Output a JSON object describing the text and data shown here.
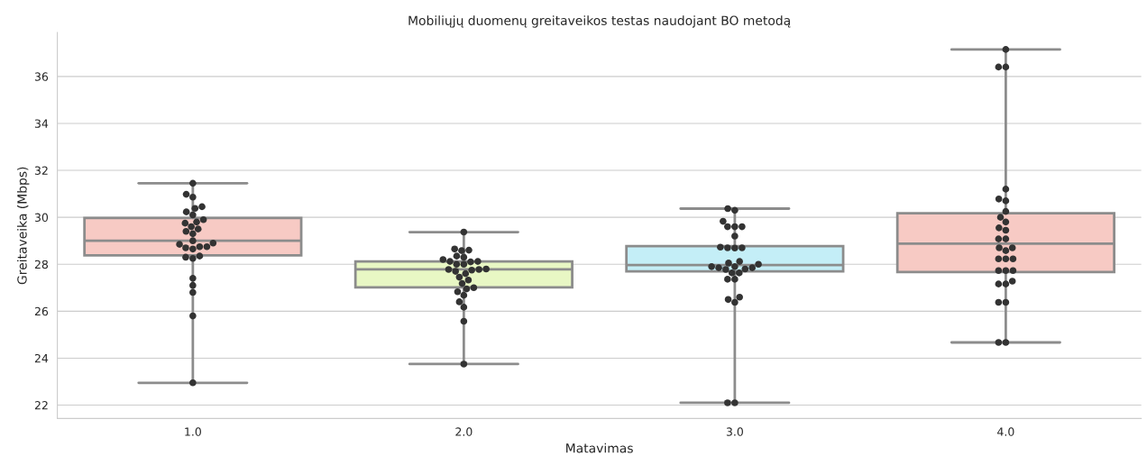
{
  "chart_data": {
    "type": "box",
    "title": "Mobiliųjų duomenų greitaveikos testas naudojant BO metodą",
    "xlabel": "Matavimas",
    "ylabel": "Greitaveika (Mbps)",
    "categories": [
      "1.0",
      "2.0",
      "3.0",
      "4.0"
    ],
    "colors": [
      "#f7cac4",
      "#e8f7c4",
      "#c4eef7",
      "#f7cac4"
    ],
    "boxes": [
      {
        "low": 22.95,
        "q1": 28.38,
        "median": 29.0,
        "q3": 29.97,
        "high": 31.45
      },
      {
        "low": 23.75,
        "q1": 27.02,
        "median": 27.78,
        "q3": 28.12,
        "high": 29.37
      },
      {
        "low": 22.1,
        "q1": 27.7,
        "median": 27.97,
        "q3": 28.77,
        "high": 30.37
      },
      {
        "low": 24.67,
        "q1": 27.67,
        "median": 28.88,
        "q3": 30.17,
        "high": 37.15
      }
    ],
    "series": [
      {
        "type": "scatter",
        "color": "#333333",
        "x": [
          "1.0",
          "1.0",
          "1.0",
          "1.0",
          "1.0",
          "1.0",
          "1.0",
          "1.0",
          "1.0",
          "1.0",
          "1.0",
          "1.0",
          "1.0",
          "1.0",
          "1.0",
          "1.0",
          "1.0",
          "1.0",
          "1.0",
          "1.0",
          "1.0",
          "1.0",
          "1.0",
          "1.0",
          "1.0",
          "1.0",
          "1.0",
          "1.0",
          "1.0",
          "2.0",
          "2.0",
          "2.0",
          "2.0",
          "2.0",
          "2.0",
          "2.0",
          "2.0",
          "2.0",
          "2.0",
          "2.0",
          "2.0",
          "2.0",
          "2.0",
          "2.0",
          "2.0",
          "2.0",
          "2.0",
          "2.0",
          "2.0",
          "2.0",
          "2.0",
          "2.0",
          "2.0",
          "2.0",
          "2.0",
          "2.0",
          "2.0",
          "2.0",
          "3.0",
          "3.0",
          "3.0",
          "3.0",
          "3.0",
          "3.0",
          "3.0",
          "3.0",
          "3.0",
          "3.0",
          "3.0",
          "3.0",
          "3.0",
          "3.0",
          "3.0",
          "3.0",
          "3.0",
          "3.0",
          "3.0",
          "3.0",
          "3.0",
          "3.0",
          "3.0",
          "3.0",
          "3.0",
          "3.0",
          "3.0",
          "3.0",
          "3.0",
          "4.0",
          "4.0",
          "4.0",
          "4.0",
          "4.0",
          "4.0",
          "4.0",
          "4.0",
          "4.0",
          "4.0",
          "4.0",
          "4.0",
          "4.0",
          "4.0",
          "4.0",
          "4.0",
          "4.0",
          "4.0",
          "4.0",
          "4.0",
          "4.0",
          "4.0",
          "4.0",
          "4.0",
          "4.0",
          "4.0",
          "4.0",
          "4.0",
          "4.0"
        ],
        "values": [
          31.45,
          30.98,
          30.86,
          30.45,
          30.38,
          30.23,
          30.1,
          29.9,
          29.8,
          29.75,
          29.6,
          29.5,
          29.4,
          29.3,
          29.0,
          28.9,
          28.85,
          28.75,
          28.7,
          28.65,
          28.75,
          28.35,
          28.25,
          28.3,
          27.4,
          27.1,
          26.8,
          25.8,
          22.95,
          29.37,
          28.65,
          28.58,
          28.6,
          28.35,
          28.3,
          28.2,
          28.12,
          28.12,
          28.1,
          28.0,
          28.0,
          27.78,
          27.78,
          27.8,
          27.75,
          27.7,
          27.6,
          27.45,
          27.33,
          27.18,
          27.0,
          26.95,
          26.83,
          26.68,
          26.4,
          26.17,
          25.57,
          23.75,
          30.37,
          30.3,
          29.83,
          29.6,
          29.6,
          29.6,
          29.2,
          28.73,
          28.69,
          28.7,
          28.7,
          28.12,
          28.05,
          28.0,
          27.9,
          27.9,
          27.85,
          27.78,
          27.8,
          27.85,
          27.63,
          27.63,
          27.36,
          27.36,
          26.6,
          26.5,
          26.38,
          22.1,
          22.1,
          37.15,
          36.4,
          36.4,
          31.2,
          30.78,
          30.7,
          30.25,
          30.0,
          29.8,
          29.55,
          29.45,
          29.08,
          29.08,
          28.7,
          28.7,
          28.58,
          28.23,
          28.23,
          28.23,
          27.73,
          27.73,
          27.73,
          27.28,
          27.16,
          27.16,
          26.38,
          26.38,
          24.67,
          24.67
        ]
      }
    ],
    "ylim": [
      21.43,
      37.87
    ],
    "yticks": [
      22,
      24,
      26,
      28,
      30,
      32,
      34,
      36
    ],
    "grid": "y",
    "legend": false
  }
}
